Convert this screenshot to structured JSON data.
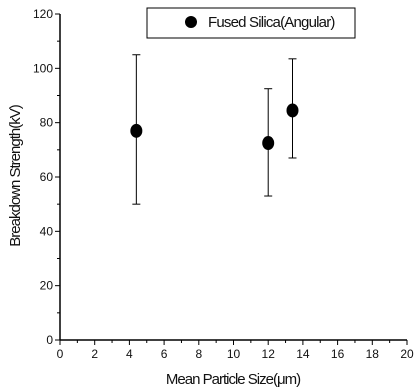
{
  "chart_data": {
    "type": "scatter",
    "title": "",
    "xlabel": "Mean Particle Size(μm)",
    "ylabel": "Breakdown Strength(kV)",
    "xlim": [
      0,
      20
    ],
    "ylim": [
      0,
      120
    ],
    "xticks": [
      0,
      2,
      4,
      6,
      8,
      10,
      12,
      14,
      16,
      18,
      20
    ],
    "yticks": [
      0,
      20,
      40,
      60,
      80,
      100,
      120
    ],
    "grid": false,
    "legend_position": "top-right",
    "marker_color": "#000000",
    "series": [
      {
        "name": "Fused Silica(Angular)",
        "points": [
          {
            "x": 4.4,
            "y": 77,
            "err_low": 50,
            "err_high": 105
          },
          {
            "x": 12.0,
            "y": 72.5,
            "err_low": 53,
            "err_high": 92.5
          },
          {
            "x": 13.4,
            "y": 84.5,
            "err_low": 67,
            "err_high": 103.5
          }
        ]
      }
    ]
  }
}
